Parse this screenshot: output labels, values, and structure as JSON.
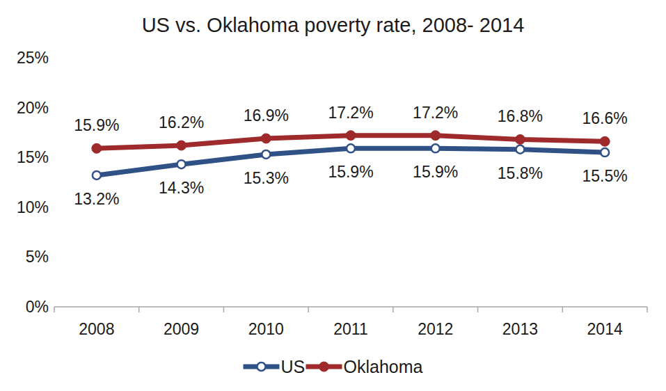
{
  "chart_data": {
    "type": "line",
    "title": "US vs. Oklahoma poverty rate, 2008- 2014",
    "categories": [
      "2008",
      "2009",
      "2010",
      "2011",
      "2012",
      "2013",
      "2014"
    ],
    "series": [
      {
        "name": "US",
        "color": "#2f5185",
        "marker": "open-circle",
        "values": [
          13.2,
          14.3,
          15.3,
          15.9,
          15.9,
          15.8,
          15.5
        ],
        "value_labels": [
          "13.2%",
          "14.3%",
          "15.3%",
          "15.9%",
          "15.9%",
          "15.8%",
          "15.5%"
        ]
      },
      {
        "name": "Oklahoma",
        "color": "#9e2a2b",
        "marker": "circle",
        "values": [
          15.9,
          16.2,
          16.9,
          17.2,
          17.2,
          16.8,
          16.6
        ],
        "value_labels": [
          "15.9%",
          "16.2%",
          "16.9%",
          "17.2%",
          "17.2%",
          "16.8%",
          "16.6%"
        ]
      }
    ],
    "ylim": [
      0,
      25
    ],
    "yticks": [
      {
        "value": 0,
        "label": "0%"
      },
      {
        "value": 5,
        "label": "5%"
      },
      {
        "value": 10,
        "label": "10%"
      },
      {
        "value": 15,
        "label": "15%"
      },
      {
        "value": 20,
        "label": "20%"
      },
      {
        "value": 25,
        "label": "25%"
      }
    ],
    "grid": false,
    "legend": "bottom",
    "data_labels": true
  }
}
